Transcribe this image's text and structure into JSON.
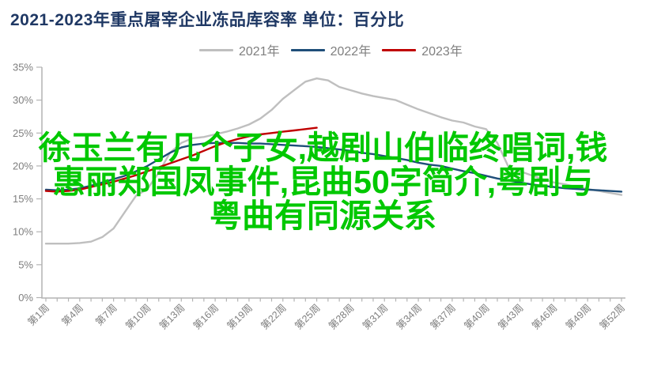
{
  "title": "2021-2023年重点屠宰企业冻品库容率  单位：百分比",
  "legend": [
    {
      "label": "2021年",
      "color": "#bfbfbf"
    },
    {
      "label": "2022年",
      "color": "#1f4e79"
    },
    {
      "label": "2023年",
      "color": "#c00000"
    }
  ],
  "overlay": {
    "full_text": "徐玉兰有几个子女,越剧山伯临终唱词,钱惠丽郑国凤事件,昆曲50字简介,粤剧与粤曲有同源关系",
    "lines": [
      "徐玉兰有几个子女,越剧山伯临终唱词,钱",
      "惠丽郑国凤事件,昆曲50字简介,粤剧与",
      "粤曲有同源关系"
    ],
    "color": "#00c800"
  },
  "chart_data": {
    "type": "line",
    "title": "2021-2023年重点屠宰企业冻品库容率",
    "unit": "百分比",
    "xlabel": "",
    "ylabel": "",
    "weeks": 52,
    "ylim": [
      0,
      35
    ],
    "grid": false,
    "legend_position": "top",
    "axis_color": "#b3b3b3",
    "tick_label_color": "#7f7f7f",
    "y_ticks": [
      {
        "value": 0,
        "label": "0%"
      },
      {
        "value": 5,
        "label": "5%"
      },
      {
        "value": 10,
        "label": "10%"
      },
      {
        "value": 15,
        "label": "15%"
      },
      {
        "value": 20,
        "label": "20%"
      },
      {
        "value": 25,
        "label": "25%"
      },
      {
        "value": 30,
        "label": "30%"
      },
      {
        "value": 35,
        "label": "35%"
      }
    ],
    "x_ticks": [
      {
        "week": 1,
        "label": "第1周"
      },
      {
        "week": 4,
        "label": "第4周"
      },
      {
        "week": 7,
        "label": "第7周"
      },
      {
        "week": 10,
        "label": "第10周"
      },
      {
        "week": 13,
        "label": "第13周"
      },
      {
        "week": 16,
        "label": "第16周"
      },
      {
        "week": 19,
        "label": "第19周"
      },
      {
        "week": 22,
        "label": "第22周"
      },
      {
        "week": 25,
        "label": "第25周"
      },
      {
        "week": 28,
        "label": "第28周"
      },
      {
        "week": 31,
        "label": "第31周"
      },
      {
        "week": 34,
        "label": "第34周"
      },
      {
        "week": 37,
        "label": "第37周"
      },
      {
        "week": 40,
        "label": "第40周"
      },
      {
        "week": 43,
        "label": "第43周"
      },
      {
        "week": 46,
        "label": "第46周"
      },
      {
        "week": 49,
        "label": "第49周"
      },
      {
        "week": 52,
        "label": "第52周"
      }
    ],
    "series": [
      {
        "name": "2021年",
        "color": "#bfbfbf",
        "start_week": 1,
        "values": [
          8.2,
          8.2,
          8.2,
          8.3,
          8.5,
          9.2,
          10.5,
          13.0,
          15.5,
          16.5,
          19.0,
          22.0,
          23.5,
          24.2,
          24.4,
          24.8,
          25.2,
          25.7,
          26.3,
          27.2,
          28.5,
          30.2,
          31.5,
          32.8,
          33.3,
          33.0,
          32.0,
          31.5,
          31.0,
          30.6,
          30.3,
          30.0,
          29.3,
          28.6,
          28.0,
          27.4,
          26.9,
          26.6,
          26.0,
          25.6,
          23.5,
          19.8,
          19.2,
          18.6,
          18.0,
          17.5,
          17.2,
          16.8,
          16.5,
          16.2,
          15.9,
          15.6
        ]
      },
      {
        "name": "2022年",
        "color": "#1f4e79",
        "start_week": 1,
        "values": [
          16.4,
          16.3,
          16.4,
          16.6,
          17.0,
          17.5,
          18.0,
          18.5,
          19.2,
          20.0,
          21.0,
          22.0,
          22.8,
          23.2,
          23.4,
          23.5,
          23.5,
          23.5,
          23.4,
          23.4,
          23.3,
          23.2,
          23.1,
          23.0,
          22.9,
          22.7,
          22.5,
          22.3,
          22.0,
          21.8,
          21.5,
          21.2,
          20.9,
          20.5,
          20.2,
          20.0,
          19.6,
          19.2,
          18.9,
          18.5,
          18.1,
          17.8,
          17.5,
          17.2,
          17.0,
          16.8,
          16.6,
          16.5,
          16.4,
          16.3,
          16.2,
          16.1
        ]
      },
      {
        "name": "2023年",
        "color": "#c00000",
        "start_week": 1,
        "values": [
          16.2,
          16.1,
          16.2,
          16.4,
          16.8,
          17.2,
          17.6,
          18.1,
          18.6,
          19.2,
          19.8,
          20.4,
          21.0,
          21.6,
          22.3,
          23.0,
          23.6,
          24.1,
          24.5,
          24.8,
          25.0,
          25.2,
          25.4,
          25.6,
          25.8
        ]
      }
    ]
  }
}
